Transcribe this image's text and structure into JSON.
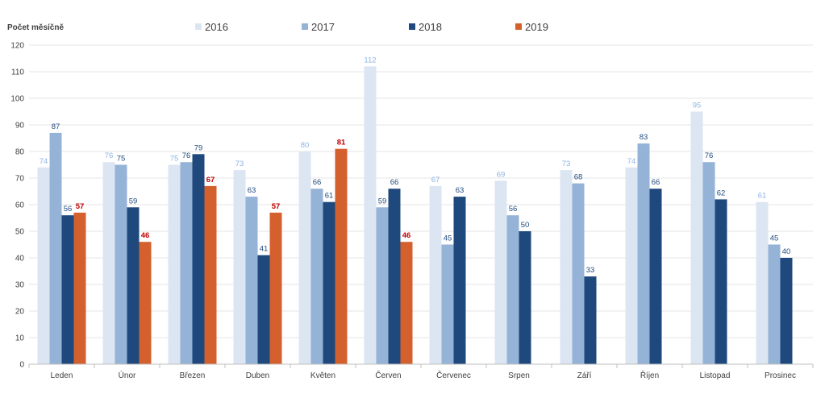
{
  "chart_data": {
    "type": "bar",
    "title": "",
    "ylabel": "Počet měsíčně",
    "xlabel": "",
    "ylim": [
      0,
      120
    ],
    "yticks": [
      0,
      10,
      20,
      30,
      40,
      50,
      60,
      70,
      80,
      90,
      100,
      110,
      120
    ],
    "legend_position": "top",
    "categories": [
      "Leden",
      "Únor",
      "Březen",
      "Duben",
      "Květen",
      "Červen",
      "Červenec",
      "Srpen",
      "Září",
      "Říjen",
      "Listopad",
      "Prosinec"
    ],
    "series": [
      {
        "name": "2016",
        "color": "#dce6f2",
        "label_color": "#8db3e2",
        "values": [
          74,
          76,
          75,
          73,
          80,
          112,
          67,
          69,
          73,
          74,
          95,
          61
        ]
      },
      {
        "name": "2017",
        "color": "#95b3d7",
        "label_color": "#1f497d",
        "values": [
          87,
          75,
          76,
          63,
          66,
          59,
          45,
          56,
          68,
          83,
          76,
          45
        ]
      },
      {
        "name": "2018",
        "color": "#1f497d",
        "label_color": "#1f497d",
        "values": [
          56,
          59,
          79,
          41,
          61,
          66,
          63,
          50,
          33,
          66,
          62,
          40
        ]
      },
      {
        "name": "2019",
        "color": "#d4602e",
        "label_color": "#c00000",
        "values": [
          57,
          46,
          67,
          57,
          81,
          46,
          null,
          null,
          null,
          null,
          null,
          null
        ]
      }
    ]
  }
}
